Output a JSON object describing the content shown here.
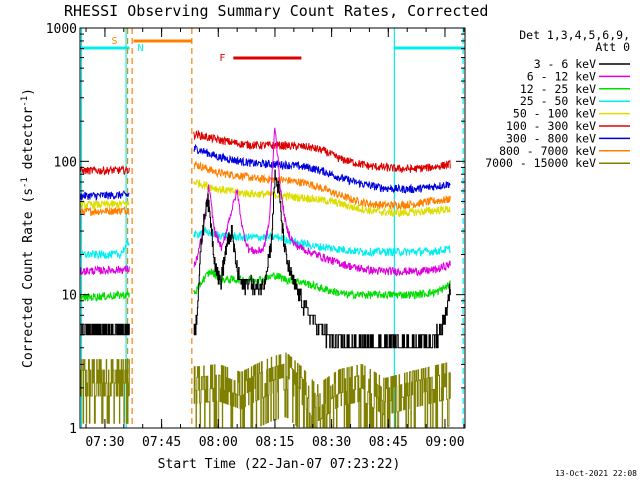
{
  "chart_data": {
    "type": "line",
    "title": "RHESSI Observing Summary Count Rates, Corrected",
    "ylabel": "Corrected Count Rate (s",
    "ylabel_sup": "-1",
    "ylabel_tail": " detector",
    "ylabel_end": ")",
    "xlabel": "Start Time (22-Jan-07 07:23:22)",
    "footer": "13-Oct-2021 22:08",
    "y_scale": "log",
    "ylim": [
      1,
      1000
    ],
    "xlim_minutes": [
      443.4,
      545.3
    ],
    "y_ticks": [
      {
        "value": 1,
        "label": "1"
      },
      {
        "value": 10,
        "label": "10"
      },
      {
        "value": 100,
        "label": "100"
      },
      {
        "value": 1000,
        "label": "1000"
      }
    ],
    "x_ticks": [
      {
        "value": 450,
        "label": "07:30"
      },
      {
        "value": 465,
        "label": "07:45"
      },
      {
        "value": 480,
        "label": "08:00"
      },
      {
        "value": 495,
        "label": "08:15"
      },
      {
        "value": 510,
        "label": "08:30"
      },
      {
        "value": 525,
        "label": "08:45"
      },
      {
        "value": 540,
        "label": "09:00"
      }
    ],
    "legend": {
      "header": "Det 1,3,4,5,6,9,",
      "header2": "Att 0",
      "placement": "right",
      "entries": [
        {
          "label": "3 - 6 keV",
          "color": "#000000"
        },
        {
          "label": "6 - 12 keV",
          "color": "#dd00dd"
        },
        {
          "label": "12 - 25 keV",
          "color": "#00dd00"
        },
        {
          "label": "25 - 50 keV",
          "color": "#00eeee"
        },
        {
          "label": "50 - 100 keV",
          "color": "#dddd00"
        },
        {
          "label": "100 - 300 keV",
          "color": "#dd0000"
        },
        {
          "label": "300 - 800 keV",
          "color": "#0000dd"
        },
        {
          "label": "800 - 7000 keV",
          "color": "#ff8000"
        },
        {
          "label": "7000 - 15000 keV",
          "color": "#808000"
        }
      ]
    },
    "markers": {
      "night_bars": [
        {
          "from": 443.4,
          "to": 456.5,
          "label": "",
          "color": "#00eeee"
        },
        {
          "from": 526.5,
          "to": 545.3,
          "label": "",
          "color": "#00eeee"
        }
      ],
      "saa_bar": {
        "from": 456.5,
        "to": 473.0,
        "label": "S",
        "label2": "N",
        "color": "#ff8000"
      },
      "flare_bar": {
        "from": 484.0,
        "to": 502.0,
        "label": "F",
        "color": "#dd0000"
      },
      "vlines": [
        {
          "x": 456.0,
          "color": "#ff8000",
          "style": "dashed"
        },
        {
          "x": 457.2,
          "color": "#ff8000",
          "style": "dashed"
        },
        {
          "x": 473.0,
          "color": "#ff8000",
          "style": "dashed"
        },
        {
          "x": 455.6,
          "color": "#00eeee",
          "style": "solid"
        },
        {
          "x": 443.8,
          "color": "#00eeee",
          "style": "solid"
        },
        {
          "x": 526.6,
          "color": "#00eeee",
          "style": "solid"
        },
        {
          "x": 544.8,
          "color": "#00eeee",
          "style": "dashed"
        }
      ]
    },
    "gap": [
      456.5,
      473.5
    ],
    "series": [
      {
        "name": "3 - 6 keV",
        "color": "#000000",
        "points": [
          [
            443.5,
            5.5
          ],
          [
            456.3,
            5.5
          ],
          [
            474,
            5.8
          ],
          [
            475.5,
            25
          ],
          [
            477,
            55
          ],
          [
            478,
            35
          ],
          [
            479,
            18
          ],
          [
            480.5,
            12
          ],
          [
            482,
            22
          ],
          [
            483.5,
            30
          ],
          [
            485,
            15
          ],
          [
            486.5,
            11
          ],
          [
            488,
            13
          ],
          [
            490,
            11
          ],
          [
            492,
            12
          ],
          [
            494,
            25
          ],
          [
            495,
            80
          ],
          [
            496,
            60
          ],
          [
            497,
            30
          ],
          [
            498,
            18
          ],
          [
            500,
            12
          ],
          [
            503,
            8
          ],
          [
            506,
            6
          ],
          [
            509,
            4.8
          ],
          [
            512,
            4.2
          ],
          [
            516,
            4.2
          ],
          [
            520,
            4.2
          ],
          [
            524,
            4.2
          ],
          [
            528,
            4.2
          ],
          [
            532,
            4.2
          ],
          [
            536,
            4.4
          ],
          [
            539,
            5.5
          ],
          [
            540.5,
            8
          ],
          [
            541.5,
            12
          ]
        ]
      },
      {
        "name": "6 - 12 keV",
        "color": "#dd00dd",
        "points": [
          [
            443.5,
            15
          ],
          [
            456.3,
            15.5
          ],
          [
            474,
            17
          ],
          [
            476,
            30
          ],
          [
            477.5,
            65
          ],
          [
            479,
            30
          ],
          [
            481,
            22
          ],
          [
            483,
            38
          ],
          [
            485,
            60
          ],
          [
            486.5,
            30
          ],
          [
            488,
            22
          ],
          [
            490,
            21
          ],
          [
            492,
            22
          ],
          [
            493.5,
            35
          ],
          [
            495,
            190
          ],
          [
            496.5,
            60
          ],
          [
            498,
            32
          ],
          [
            500,
            24
          ],
          [
            504,
            21
          ],
          [
            510,
            18
          ],
          [
            516,
            16
          ],
          [
            522,
            15
          ],
          [
            528,
            15
          ],
          [
            534,
            15
          ],
          [
            538,
            15.5
          ],
          [
            541.5,
            17
          ]
        ]
      },
      {
        "name": "12 - 25 keV",
        "color": "#00dd00",
        "points": [
          [
            443.5,
            9.5
          ],
          [
            456.3,
            10
          ],
          [
            474,
            10.5
          ],
          [
            476,
            13
          ],
          [
            478,
            15
          ],
          [
            481,
            13
          ],
          [
            484,
            13
          ],
          [
            488,
            13
          ],
          [
            492,
            13
          ],
          [
            495,
            14
          ],
          [
            498,
            13
          ],
          [
            502,
            12.5
          ],
          [
            508,
            11
          ],
          [
            514,
            10
          ],
          [
            520,
            10
          ],
          [
            526,
            10
          ],
          [
            532,
            10
          ],
          [
            538,
            10.5
          ],
          [
            541.5,
            12
          ]
        ]
      },
      {
        "name": "25 - 50 keV",
        "color": "#00eeee",
        "points": [
          [
            443.5,
            20
          ],
          [
            454,
            20
          ],
          [
            455.5,
            23
          ],
          [
            456.3,
            25
          ],
          [
            474,
            28
          ],
          [
            476,
            30
          ],
          [
            480,
            28
          ],
          [
            486,
            27
          ],
          [
            490,
            27
          ],
          [
            496,
            27
          ],
          [
            500,
            25
          ],
          [
            506,
            23
          ],
          [
            512,
            22
          ],
          [
            518,
            21
          ],
          [
            524,
            21
          ],
          [
            530,
            21
          ],
          [
            536,
            21
          ],
          [
            541.5,
            22
          ]
        ]
      },
      {
        "name": "50 - 100 keV",
        "color": "#dddd00",
        "points": [
          [
            443.5,
            47
          ],
          [
            456.3,
            48
          ],
          [
            474,
            70
          ],
          [
            480,
            62
          ],
          [
            486,
            58
          ],
          [
            490,
            57
          ],
          [
            496,
            56
          ],
          [
            500,
            54
          ],
          [
            504,
            53
          ],
          [
            510,
            50
          ],
          [
            516,
            45
          ],
          [
            522,
            42
          ],
          [
            528,
            41
          ],
          [
            534,
            42
          ],
          [
            538,
            43
          ],
          [
            541.5,
            44
          ]
        ]
      },
      {
        "name": "100 - 300 keV",
        "color": "#dd0000",
        "points": [
          [
            443.5,
            85
          ],
          [
            456.3,
            86
          ],
          [
            474,
            160
          ],
          [
            480,
            145
          ],
          [
            486,
            135
          ],
          [
            490,
            132
          ],
          [
            496,
            132
          ],
          [
            500,
            130
          ],
          [
            504,
            128
          ],
          [
            508,
            120
          ],
          [
            512,
            105
          ],
          [
            516,
            98
          ],
          [
            520,
            92
          ],
          [
            524,
            90
          ],
          [
            528,
            88
          ],
          [
            532,
            88
          ],
          [
            536,
            90
          ],
          [
            541.5,
            95
          ]
        ]
      },
      {
        "name": "300 - 800 keV",
        "color": "#0000dd",
        "points": [
          [
            443.5,
            55
          ],
          [
            456.3,
            56
          ],
          [
            474,
            125
          ],
          [
            480,
            108
          ],
          [
            486,
            100
          ],
          [
            490,
            96
          ],
          [
            496,
            95
          ],
          [
            500,
            93
          ],
          [
            504,
            90
          ],
          [
            508,
            84
          ],
          [
            512,
            76
          ],
          [
            516,
            70
          ],
          [
            520,
            66
          ],
          [
            524,
            63
          ],
          [
            528,
            62
          ],
          [
            532,
            62
          ],
          [
            536,
            64
          ],
          [
            541.5,
            68
          ]
        ]
      },
      {
        "name": "800 - 7000 keV",
        "color": "#ff8000",
        "points": [
          [
            443.5,
            42
          ],
          [
            456.3,
            43
          ],
          [
            474,
            95
          ],
          [
            480,
            82
          ],
          [
            486,
            78
          ],
          [
            490,
            74
          ],
          [
            496,
            73
          ],
          [
            500,
            71
          ],
          [
            504,
            68
          ],
          [
            508,
            62
          ],
          [
            512,
            56
          ],
          [
            516,
            51
          ],
          [
            520,
            48
          ],
          [
            524,
            47
          ],
          [
            528,
            47
          ],
          [
            532,
            48
          ],
          [
            536,
            50
          ],
          [
            541.5,
            52
          ]
        ]
      },
      {
        "name": "7000 - 15000 keV",
        "color": "#808000",
        "points": [
          [
            443.5,
            2.5
          ],
          [
            456.3,
            2.5
          ],
          [
            474,
            2.2
          ],
          [
            480,
            2.3
          ],
          [
            486,
            2.0
          ],
          [
            490,
            2.3
          ],
          [
            494,
            2.6
          ],
          [
            498,
            2.8
          ],
          [
            502,
            2.2
          ],
          [
            506,
            1.6
          ],
          [
            512,
            2.1
          ],
          [
            518,
            2.3
          ],
          [
            524,
            1.8
          ],
          [
            530,
            2.0
          ],
          [
            536,
            2.2
          ],
          [
            541.5,
            2.4
          ]
        ]
      }
    ]
  }
}
